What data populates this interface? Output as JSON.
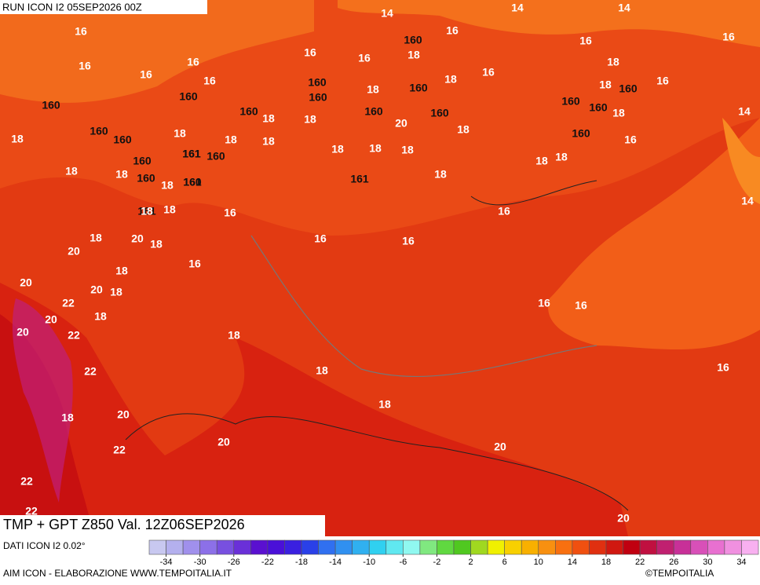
{
  "header": {
    "run": "RUN ICON I2 05SEP2026 00Z"
  },
  "footer": {
    "title": "TMP + GPT Z850 Val. 12Z06SEP2026",
    "source": "DATI ICON I2 0.02°",
    "credit": "AIM ICON - ELABORAZIONE WWW.TEMPOITALIA.IT",
    "copyright": "©TEMPOITALIA"
  },
  "contour_labels": [
    "14",
    "14",
    "14",
    "14",
    "14",
    "16",
    "16",
    "16",
    "16",
    "16",
    "16",
    "16",
    "16",
    "16",
    "16",
    "16",
    "16",
    "16",
    "16",
    "16",
    "16",
    "16",
    "16",
    "16",
    "16",
    "16",
    "160",
    "160",
    "160",
    "160",
    "160",
    "160",
    "160",
    "160",
    "160",
    "160",
    "160",
    "160",
    "160",
    "161",
    "160",
    "161",
    "160",
    "161",
    "160",
    "161",
    "160",
    "161",
    "160",
    "160",
    "18",
    "18",
    "18",
    "18",
    "18",
    "18",
    "18",
    "18",
    "18",
    "18",
    "18",
    "18",
    "18",
    "18",
    "18",
    "18",
    "18",
    "18",
    "18",
    "18",
    "18",
    "18",
    "18",
    "18",
    "18",
    "18",
    "18",
    "18",
    "18",
    "18",
    "18",
    "18",
    "18",
    "20",
    "20",
    "20",
    "20",
    "20",
    "20",
    "20",
    "20",
    "20",
    "20",
    "20",
    "22",
    "22",
    "22",
    "22",
    "22",
    "22"
  ],
  "colorbar": {
    "range": [
      -36,
      36
    ],
    "ticks": [
      -34,
      -30,
      -26,
      -22,
      -18,
      -14,
      -10,
      -6,
      -2,
      2,
      6,
      10,
      14,
      18,
      22,
      26,
      30,
      34
    ],
    "colors": [
      "#c8c8f0",
      "#b4b0ee",
      "#a090ec",
      "#8c70e8",
      "#7850e0",
      "#6a30d8",
      "#5a10d0",
      "#4a10d8",
      "#3a20e0",
      "#2a40e8",
      "#3070f0",
      "#3090f0",
      "#30b0f0",
      "#30d0f0",
      "#60e8f0",
      "#90f8f0",
      "#80e880",
      "#60d840",
      "#50c820",
      "#a0d820",
      "#f0f000",
      "#f8d000",
      "#f8b000",
      "#f89010",
      "#f87010",
      "#f05010",
      "#e03010",
      "#d01810",
      "#c00010",
      "#c01040",
      "#c02070",
      "#c83098",
      "#d850b8",
      "#e870d0",
      "#f090e0",
      "#f8b0f0"
    ]
  }
}
